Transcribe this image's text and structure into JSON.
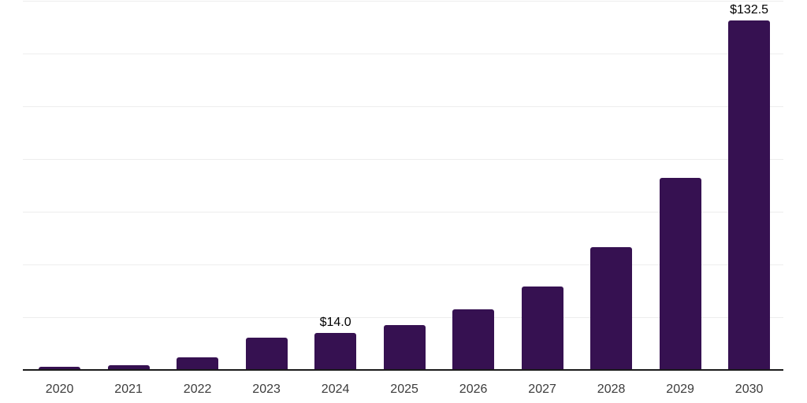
{
  "chart_data": {
    "type": "bar",
    "title": "",
    "xlabel": "",
    "ylabel": "",
    "categories": [
      "2020",
      "2021",
      "2022",
      "2023",
      "2024",
      "2025",
      "2026",
      "2027",
      "2028",
      "2029",
      "2030"
    ],
    "values": [
      1.2,
      1.9,
      4.7,
      12.1,
      14.0,
      17.0,
      23.1,
      31.6,
      46.6,
      72.9,
      132.5
    ],
    "data_labels": [
      "",
      "",
      "",
      "",
      "$14.0",
      "",
      "",
      "",
      "",
      "",
      "$132.5"
    ],
    "ylim": [
      0,
      140
    ],
    "grid_step": 20,
    "grid_on": true,
    "y_tick_labels_visible": false,
    "legend": "none",
    "colors": {
      "bar": "#361151",
      "gridline": "#ededed",
      "axis_line": "#1a1a1a",
      "x_tick_label": "#3c3c3c",
      "data_label": "#000000",
      "background": "#ffffff"
    }
  }
}
